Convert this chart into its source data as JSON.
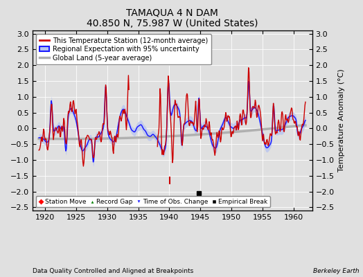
{
  "title": "TAMAQUA 4 N DAM",
  "subtitle": "40.850 N, 75.987 W (United States)",
  "ylabel": "Temperature Anomaly (°C)",
  "xlabel_note": "Data Quality Controlled and Aligned at Breakpoints",
  "credit": "Berkeley Earth",
  "xlim": [
    1918,
    1963
  ],
  "ylim": [
    -2.6,
    3.1
  ],
  "yticks": [
    -2.5,
    -2,
    -1.5,
    -1,
    -0.5,
    0,
    0.5,
    1,
    1.5,
    2,
    2.5,
    3
  ],
  "xticks": [
    1920,
    1925,
    1930,
    1935,
    1940,
    1945,
    1950,
    1955,
    1960
  ],
  "background_color": "#e0e0e0",
  "plot_bg_color": "#e0e0e0",
  "station_color": "#cc0000",
  "regional_color": "#1a1aff",
  "regional_uncertainty_color": "#b8c4f0",
  "global_color": "#b0b0b0",
  "empirical_break_x": 1944.7,
  "empirical_break_y": -2.05,
  "time_obs_x": 1940.1,
  "time_obs_y_top": -1.55,
  "time_obs_y_bot": -1.75,
  "station_gap_start": 1933.5,
  "station_gap_end": 1938.0,
  "figsize": [
    5.24,
    4.0
  ],
  "dpi": 100
}
